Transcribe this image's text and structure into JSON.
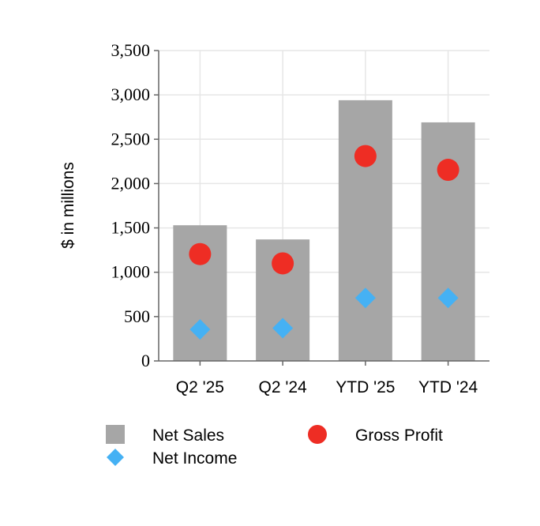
{
  "chart_data": {
    "type": "bar",
    "ylabel": "$ in millions",
    "xlabel": "",
    "ylim": [
      0,
      3500
    ],
    "yticks": [
      0,
      500,
      1000,
      1500,
      2000,
      2500,
      3000,
      3500
    ],
    "ytick_labels": [
      "0",
      "500",
      "1,000",
      "1,500",
      "2,000",
      "2,500",
      "3,000",
      "3,500"
    ],
    "categories": [
      "Q2 '25",
      "Q2 '24",
      "YTD '25",
      "YTD '24"
    ],
    "grid": true,
    "legend_position": "bottom",
    "series": [
      {
        "name": "Net Sales",
        "type": "bar",
        "marker": "square",
        "color": "#a6a6a6",
        "values": [
          1530,
          1370,
          2940,
          2690
        ]
      },
      {
        "name": "Gross Profit",
        "type": "scatter",
        "marker": "circle",
        "color": "#ee2d24",
        "values": [
          1205,
          1100,
          2310,
          2155
        ]
      },
      {
        "name": "Net Income",
        "type": "scatter",
        "marker": "diamond",
        "color": "#45b1f4",
        "values": [
          355,
          370,
          710,
          710
        ]
      }
    ]
  }
}
